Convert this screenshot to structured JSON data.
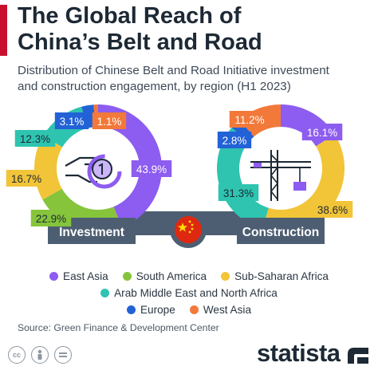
{
  "header": {
    "title_line1": "The Global Reach of",
    "title_line2": "China’s Belt and Road",
    "subtitle_line1": "Distribution of Chinese Belt and Road Initiative investment",
    "subtitle_line2": "and construction engagement, by region (H1 2023)"
  },
  "colors": {
    "accent": "#c8102e",
    "east_asia": "#8d5cf0",
    "south_america": "#86c43c",
    "sub_saharan_africa": "#f2c438",
    "arab_middle_east": "#2ec4b0",
    "europe": "#2262d6",
    "west_asia": "#f2793a",
    "label_box": "#4d5e72"
  },
  "chart_data": [
    {
      "type": "pie",
      "label": "Investment",
      "categories": [
        "East Asia",
        "South America",
        "Sub-Saharan Africa",
        "Arab Middle East and North Africa",
        "Europe",
        "West Asia"
      ],
      "values": [
        43.9,
        22.9,
        16.7,
        12.3,
        3.1,
        1.1
      ],
      "value_labels": [
        "43.9%",
        "22.9%",
        "16.7%",
        "12.3%",
        "3.1%",
        "1.1%"
      ]
    },
    {
      "type": "pie",
      "label": "Construction",
      "categories": [
        "East Asia",
        "Sub-Saharan Africa",
        "Arab Middle East and North Africa",
        "Europe",
        "West Asia"
      ],
      "values": [
        16.1,
        38.6,
        31.3,
        2.8,
        11.2
      ],
      "value_labels": [
        "16.1%",
        "38.6%",
        "31.3%",
        "2.8%",
        "11.2%"
      ]
    }
  ],
  "legend": {
    "row1": [
      {
        "name": "East Asia",
        "color": "#8d5cf0"
      },
      {
        "name": "South America",
        "color": "#86c43c"
      },
      {
        "name": "Sub-Saharan Africa",
        "color": "#f2c438"
      }
    ],
    "row2": [
      {
        "name": "Arab Middle East and North Africa",
        "color": "#2ec4b0"
      }
    ],
    "row3": [
      {
        "name": "Europe",
        "color": "#2262d6"
      },
      {
        "name": "West Asia",
        "color": "#f2793a"
      }
    ]
  },
  "footer": {
    "source": "Source: Green Finance & Development Center",
    "brand": "statista",
    "cc_icons": [
      "cc-icon",
      "person-icon",
      "equals-icon"
    ]
  }
}
